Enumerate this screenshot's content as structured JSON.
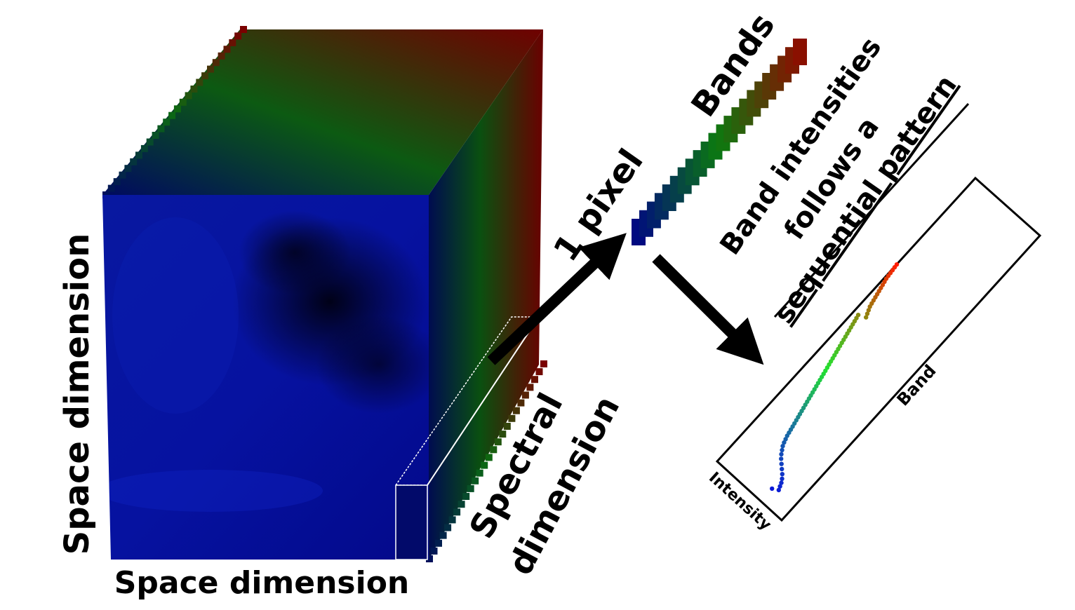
{
  "labels": {
    "space_vertical": "Space dimension",
    "space_horizontal": "Space dimension",
    "spectral_1": "Spectral",
    "spectral_2": "dimension",
    "one_pixel": "1 pixel",
    "bands": "Bands",
    "pattern_1": "Band intensities",
    "pattern_2": "follows a",
    "pattern_3": "sequential pattern"
  },
  "plot": {
    "xlabel": "Band",
    "ylabel": "Intensity"
  },
  "chart_data": {
    "type": "scatter",
    "xlabel": "Band",
    "ylabel": "Intensity",
    "color_map": [
      "#0a18d8",
      "#1a7a9a",
      "#22e030",
      "#8a8a10",
      "#ff1c00"
    ],
    "series": [
      {
        "x": [
          1,
          2,
          3,
          4,
          5,
          6,
          7,
          8,
          9,
          10,
          11,
          12,
          13,
          14,
          15,
          16,
          17,
          18,
          19,
          20,
          21,
          22,
          23,
          24,
          25,
          26,
          27,
          28,
          29,
          30,
          31,
          32,
          33,
          34,
          35,
          36,
          37,
          38,
          39,
          40,
          41,
          42,
          43,
          44,
          45,
          46,
          47,
          48,
          49,
          50,
          51,
          52,
          53,
          54,
          55,
          56,
          57,
          58,
          59,
          60,
          61,
          62,
          63,
          64,
          65,
          66,
          67,
          68,
          69,
          70,
          71,
          72
        ],
        "y": [
          0.1,
          0.02,
          0.04,
          0.06,
          0.09,
          0.13,
          0.18,
          0.23,
          0.28,
          0.32,
          0.35,
          0.38,
          0.4,
          0.415,
          0.43,
          0.44,
          0.45,
          0.46,
          0.47,
          0.48,
          0.49,
          0.5,
          0.51,
          0.52,
          0.53,
          0.54,
          0.55,
          0.56,
          0.57,
          0.58,
          0.59,
          0.6,
          0.61,
          0.62,
          0.63,
          0.64,
          0.65,
          0.66,
          0.67,
          0.68,
          0.69,
          0.7,
          0.71,
          0.72,
          0.73,
          0.74,
          0.75,
          0.76,
          0.77,
          0.78,
          0.79,
          0.8,
          0.81,
          0.82,
          0.72,
          0.74,
          0.76,
          0.78,
          0.79,
          0.8,
          0.81,
          0.82,
          0.83,
          0.84,
          0.85,
          0.86,
          0.87,
          0.875,
          0.88,
          0.885,
          0.89,
          0.895
        ]
      }
    ]
  }
}
